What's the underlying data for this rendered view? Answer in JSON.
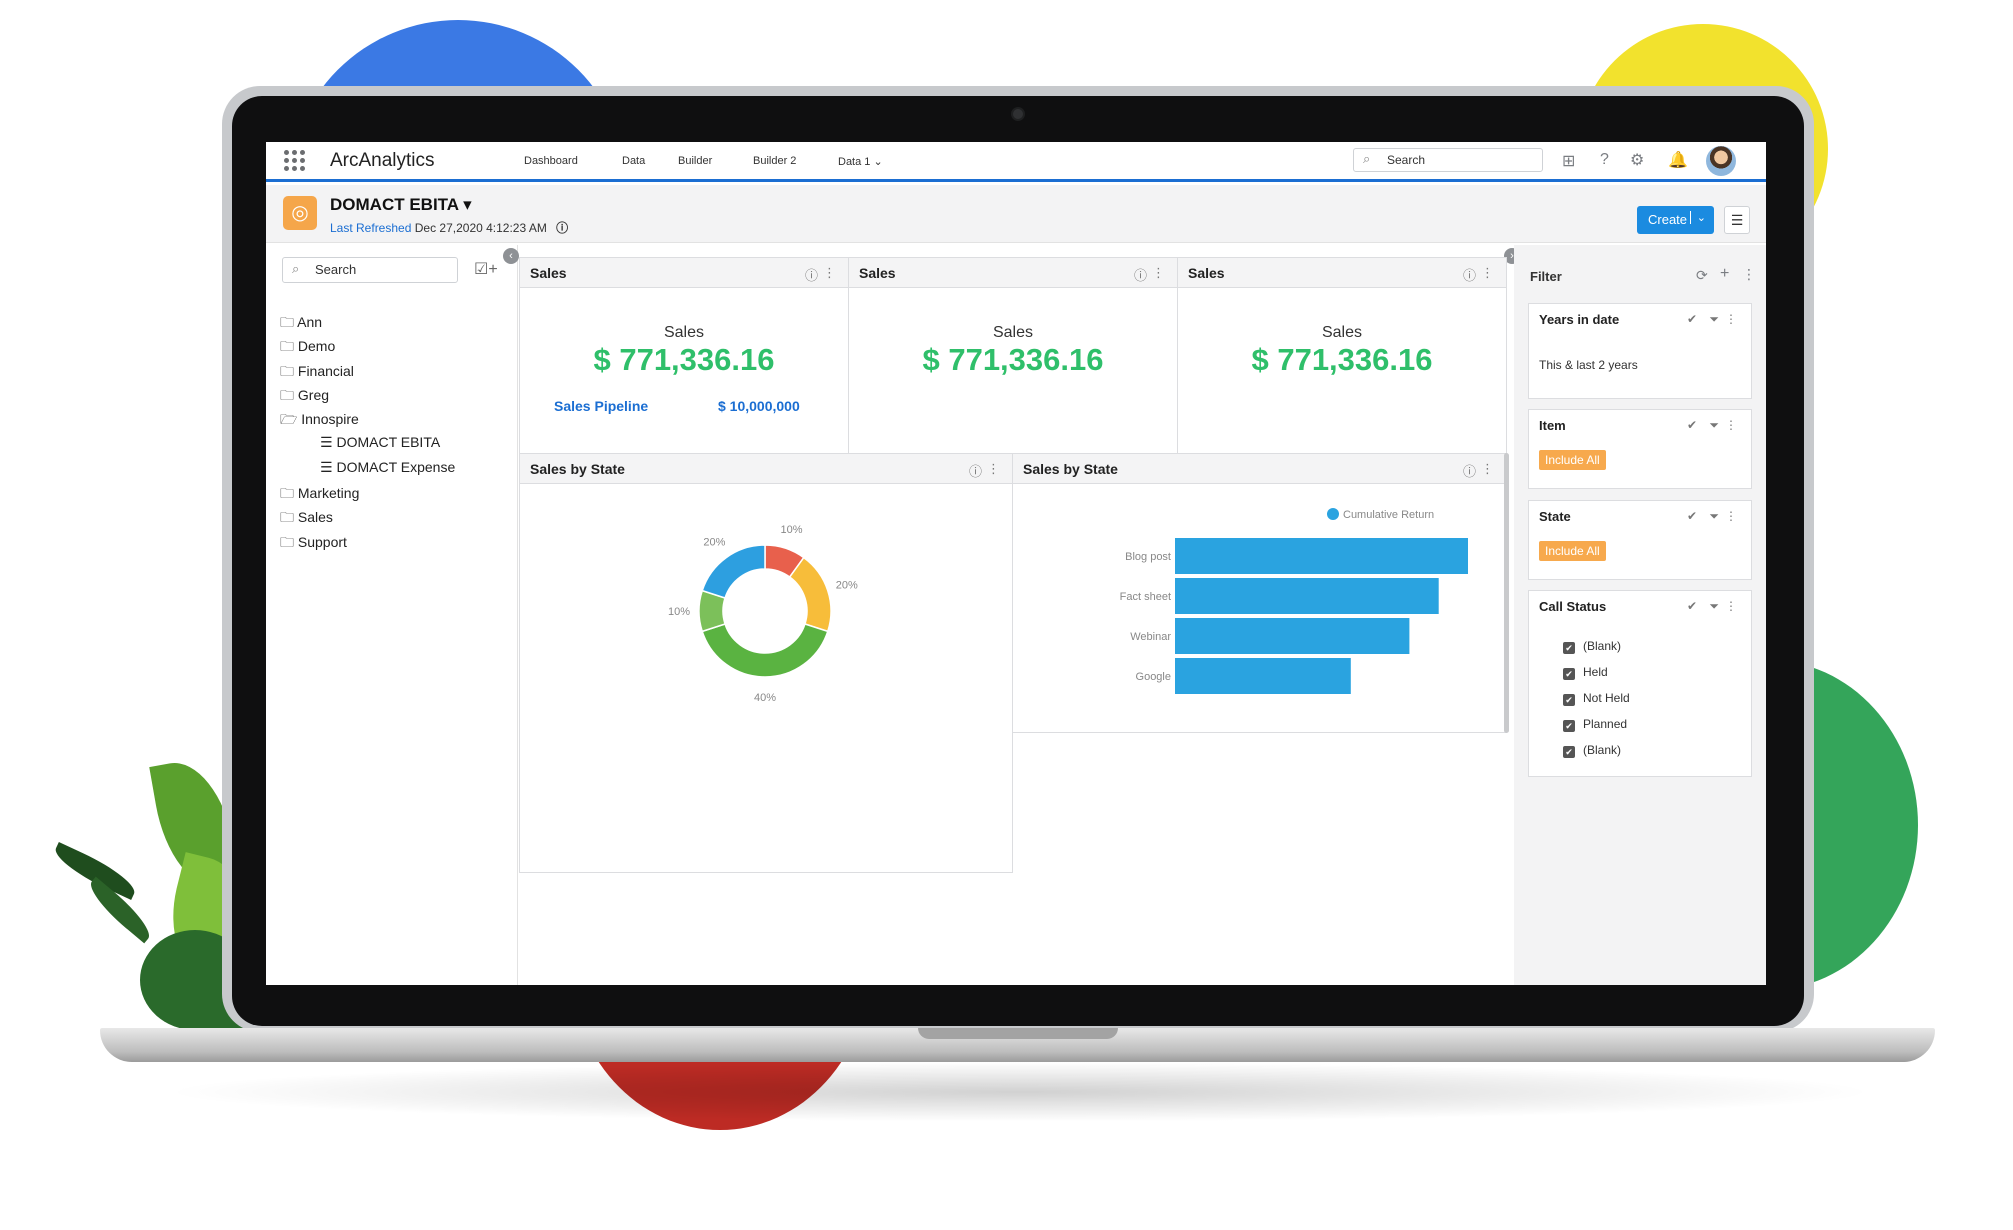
{
  "app": {
    "name": "ArcAnalytics"
  },
  "nav": {
    "items": [
      "Dashboard",
      "Data",
      "Builder",
      "Builder 2",
      "Data 1 ⌄"
    ]
  },
  "search": {
    "top_placeholder": "Search",
    "side_placeholder": "Search"
  },
  "dashboard": {
    "title": "DOMACT EBITA ▾",
    "refreshed_label": "Last Refreshed",
    "refreshed_value": "Dec 27,2020 4:12:23 AM"
  },
  "toolbar": {
    "create_label": "Create"
  },
  "sidebar": {
    "folders": [
      "Ann",
      "Demo",
      "Financial",
      "Greg",
      "Innospire",
      "Marketing",
      "Sales",
      "Support"
    ],
    "children": [
      "DOMACT EBITA",
      "DOMACT Expense"
    ]
  },
  "kpis": [
    {
      "title": "Sales",
      "label": "Sales",
      "value": "$ 771,336.16"
    },
    {
      "title": "Sales",
      "label": "Sales",
      "value": "$ 771,336.16"
    },
    {
      "title": "Sales",
      "label": "Sales",
      "value": "$ 771,336.16"
    }
  ],
  "pipeline": {
    "label": "Sales Pipeline",
    "value": "$ 10,000,000"
  },
  "charts": {
    "donut_title": "Sales by State",
    "bar_title": "Sales by State"
  },
  "chart_data": [
    {
      "type": "pie",
      "title": "Sales by State",
      "values": [
        10,
        20,
        40,
        10,
        20
      ],
      "labels": [
        "10%",
        "20%",
        "40%",
        "10%",
        "20%"
      ],
      "colors": [
        "#e8604c",
        "#f7bd3a",
        "#5ab341",
        "#7cc05a",
        "#2d9fe0"
      ]
    },
    {
      "type": "bar",
      "title": "Sales by State",
      "legend": [
        "Cumulative Return"
      ],
      "categories": [
        "Blog post",
        "Fact sheet",
        "Webinar",
        "Google"
      ],
      "series": [
        {
          "name": "Cumulative Return",
          "values": [
            100,
            90,
            80,
            60
          ]
        }
      ],
      "color": "#2aa3e0"
    }
  ],
  "filter": {
    "title": "Filter",
    "cards": [
      {
        "title": "Years in date",
        "value": "This & last 2 years"
      },
      {
        "title": "Item",
        "value": "Include All"
      },
      {
        "title": "State",
        "value": "Include All"
      },
      {
        "title": "Call Status",
        "options": [
          "(Blank)",
          "Held",
          "Not Held",
          "Planned",
          "(Blank)"
        ]
      }
    ]
  },
  "colors": {
    "accent": "#1b6ed2",
    "kpi": "#2fbf6a",
    "pill": "#f7a94d"
  }
}
